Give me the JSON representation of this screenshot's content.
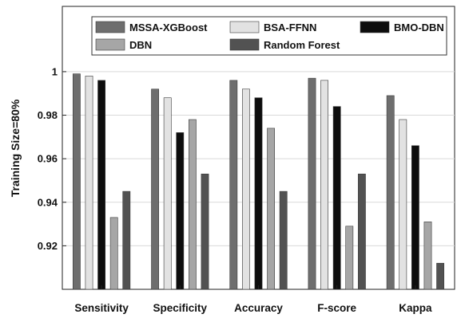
{
  "chart_data": {
    "type": "bar",
    "title": "",
    "xlabel": "",
    "ylabel": "Training Size=80%",
    "ylim": [
      0.9,
      1.03
    ],
    "yticks": [
      0.92,
      0.94,
      0.96,
      0.98,
      1
    ],
    "ytick_labels": [
      "0.92",
      "0.94",
      "0.96",
      "0.98",
      "1"
    ],
    "grid": true,
    "legend_position": "top",
    "categories": [
      "Sensitivity",
      "Specificity",
      "Accuracy",
      "F-score",
      "Kappa"
    ],
    "series": [
      {
        "name": "MSSA-XGBoost",
        "color": "#6e6e6e",
        "values": [
          0.999,
          0.992,
          0.996,
          0.997,
          0.989
        ]
      },
      {
        "name": "BSA-FFNN",
        "color": "#e2e2e2",
        "values": [
          0.998,
          0.988,
          0.992,
          0.996,
          0.978
        ]
      },
      {
        "name": "BMO-DBN",
        "color": "#0d0d0d",
        "values": [
          0.996,
          0.972,
          0.988,
          0.984,
          0.966
        ]
      },
      {
        "name": "DBN",
        "color": "#a6a6a6",
        "values": [
          0.933,
          0.978,
          0.974,
          0.929,
          0.931
        ]
      },
      {
        "name": "Random Forest",
        "color": "#525252",
        "values": [
          0.945,
          0.953,
          0.945,
          0.953,
          0.912
        ]
      }
    ]
  }
}
